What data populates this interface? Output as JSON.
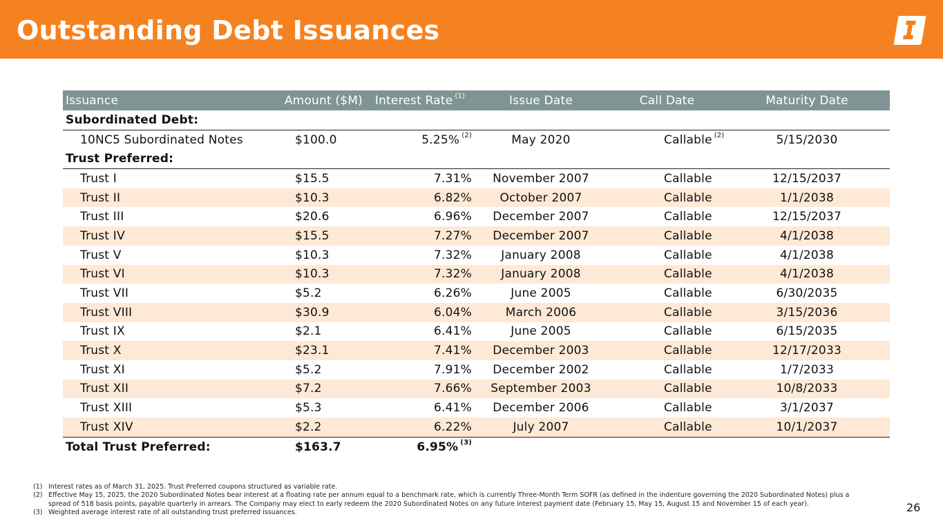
{
  "slide": {
    "title": "Outstanding Debt Issuances",
    "page_number": "26",
    "colors": {
      "header": "#f58220",
      "table_header": "#7f9595",
      "row_shade": "#fde9d6"
    }
  },
  "table": {
    "headers": {
      "issuance": "Issuance",
      "amount": "Amount ($M)",
      "interest_rate": "Interest Rate",
      "interest_rate_sup": "(1)",
      "issue_date": "Issue Date",
      "call_date": "Call Date",
      "maturity_date": "Maturity Date"
    },
    "subordinated_label": "Subordinated Debt:",
    "subordinated": {
      "name": "10NC5 Subordinated Notes",
      "amount": "$100.0",
      "rate": "5.25%",
      "rate_sup": "(2)",
      "issue": "May 2020",
      "call": "Callable",
      "call_sup": "(2)",
      "maturity": "5/15/2030"
    },
    "trust_label": "Trust Preferred:",
    "trusts": [
      {
        "name": "Trust I",
        "amount": "$15.5",
        "rate": "7.31%",
        "issue": "November 2007",
        "call": "Callable",
        "maturity": "12/15/2037"
      },
      {
        "name": "Trust II",
        "amount": "$10.3",
        "rate": "6.82%",
        "issue": "October 2007",
        "call": "Callable",
        "maturity": "1/1/2038"
      },
      {
        "name": "Trust III",
        "amount": "$20.6",
        "rate": "6.96%",
        "issue": "December 2007",
        "call": "Callable",
        "maturity": "12/15/2037"
      },
      {
        "name": "Trust IV",
        "amount": "$15.5",
        "rate": "7.27%",
        "issue": "December 2007",
        "call": "Callable",
        "maturity": "4/1/2038"
      },
      {
        "name": "Trust V",
        "amount": "$10.3",
        "rate": "7.32%",
        "issue": "January 2008",
        "call": "Callable",
        "maturity": "4/1/2038"
      },
      {
        "name": "Trust VI",
        "amount": "$10.3",
        "rate": "7.32%",
        "issue": "January 2008",
        "call": "Callable",
        "maturity": "4/1/2038"
      },
      {
        "name": "Trust VII",
        "amount": "$5.2",
        "rate": "6.26%",
        "issue": "June 2005",
        "call": "Callable",
        "maturity": "6/30/2035"
      },
      {
        "name": "Trust VIII",
        "amount": "$30.9",
        "rate": "6.04%",
        "issue": "March 2006",
        "call": "Callable",
        "maturity": "3/15/2036"
      },
      {
        "name": "Trust IX",
        "amount": "$2.1",
        "rate": "6.41%",
        "issue": "June 2005",
        "call": "Callable",
        "maturity": "6/15/2035"
      },
      {
        "name": "Trust X",
        "amount": "$23.1",
        "rate": "7.41%",
        "issue": "December 2003",
        "call": "Callable",
        "maturity": "12/17/2033"
      },
      {
        "name": "Trust XI",
        "amount": "$5.2",
        "rate": "7.91%",
        "issue": "December 2002",
        "call": "Callable",
        "maturity": "1/7/2033"
      },
      {
        "name": "Trust XII",
        "amount": "$7.2",
        "rate": "7.66%",
        "issue": "September 2003",
        "call": "Callable",
        "maturity": "10/8/2033"
      },
      {
        "name": "Trust XIII",
        "amount": "$5.3",
        "rate": "6.41%",
        "issue": "December 2006",
        "call": "Callable",
        "maturity": "3/1/2037"
      },
      {
        "name": "Trust XIV",
        "amount": "$2.2",
        "rate": "6.22%",
        "issue": "July 2007",
        "call": "Callable",
        "maturity": "10/1/2037"
      }
    ],
    "total": {
      "label": "Total Trust Preferred:",
      "amount": "$163.7",
      "rate": "6.95%",
      "rate_sup": "(3)"
    }
  },
  "footnotes": [
    {
      "num": "(1)",
      "text": "Interest rates as of March 31, 2025. Trust Preferred coupons structured as variable rate."
    },
    {
      "num": "(2)",
      "text": "Effective May 15, 2025, the 2020 Subordinated Notes bear interest at a floating rate per annum equal to a benchmark rate, which is currently Three-Month Term SOFR (as defined in the indenture governing the 2020 Subordinated Notes) plus a spread of 518 basis points, payable quarterly in arrears. The Company may elect to early redeem the 2020 Subordinated Notes on any future interest payment date (February 15, May 15, August 15 and November 15 of each year)."
    },
    {
      "num": "(3)",
      "text": "Weighted average interest rate of all outstanding trust preferred issuances."
    }
  ]
}
